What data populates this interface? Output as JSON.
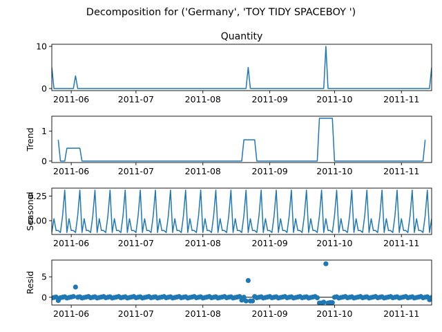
{
  "figure": {
    "suptitle": "Decomposition for ('Germany', 'TOY TIDY SPACEBOY  ')"
  },
  "colors": {
    "series": "#1f77b4",
    "axis": "#000000",
    "background": "#ffffff"
  },
  "chart_data": [
    {
      "type": "line",
      "title": "Quantity",
      "ylabel": "",
      "x_axis": {
        "kind": "date",
        "start": "2011-05-23",
        "end": "2011-11-15",
        "ticks": [
          "2011-06",
          "2011-07",
          "2011-08",
          "2011-09",
          "2011-10",
          "2011-11"
        ]
      },
      "ylim": [
        -0.5,
        10.5
      ],
      "yticks": [
        0,
        10
      ],
      "grid": false,
      "points": [
        {
          "x": "2011-05-23",
          "y": 5
        },
        {
          "x": "2011-05-24",
          "y": 0
        },
        {
          "x": "2011-06-02",
          "y": 0
        },
        {
          "x": "2011-06-03",
          "y": 3
        },
        {
          "x": "2011-06-04",
          "y": 0
        },
        {
          "x": "2011-08-21",
          "y": 0
        },
        {
          "x": "2011-08-22",
          "y": 5
        },
        {
          "x": "2011-08-23",
          "y": 0
        },
        {
          "x": "2011-09-26",
          "y": 0
        },
        {
          "x": "2011-09-27",
          "y": 10
        },
        {
          "x": "2011-09-28",
          "y": 0
        },
        {
          "x": "2011-11-14",
          "y": 0
        },
        {
          "x": "2011-11-15",
          "y": 5
        }
      ]
    },
    {
      "type": "line",
      "title": "",
      "ylabel": "Trend",
      "x_axis": {
        "kind": "date",
        "start": "2011-05-23",
        "end": "2011-11-15",
        "ticks": [
          "2011-06",
          "2011-07",
          "2011-08",
          "2011-09",
          "2011-10",
          "2011-11"
        ]
      },
      "ylim": [
        -0.05,
        1.5
      ],
      "yticks": [
        0,
        1
      ],
      "grid": false,
      "points": [
        {
          "x": "2011-05-26",
          "y": 0.71
        },
        {
          "x": "2011-05-27",
          "y": 0
        },
        {
          "x": "2011-05-29",
          "y": 0
        },
        {
          "x": "2011-05-30",
          "y": 0.43
        },
        {
          "x": "2011-06-05",
          "y": 0.43
        },
        {
          "x": "2011-06-06",
          "y": 0
        },
        {
          "x": "2011-08-19",
          "y": 0
        },
        {
          "x": "2011-08-20",
          "y": 0.71
        },
        {
          "x": "2011-08-25",
          "y": 0.71
        },
        {
          "x": "2011-08-26",
          "y": 0
        },
        {
          "x": "2011-09-23",
          "y": 0
        },
        {
          "x": "2011-09-24",
          "y": 1.43
        },
        {
          "x": "2011-09-30",
          "y": 1.43
        },
        {
          "x": "2011-10-01",
          "y": 0
        },
        {
          "x": "2011-11-11",
          "y": 0
        },
        {
          "x": "2011-11-12",
          "y": 0.71
        }
      ]
    },
    {
      "type": "line",
      "title": "",
      "ylabel": "Seasonal",
      "x_axis": {
        "kind": "date",
        "start": "2011-05-23",
        "end": "2011-11-15",
        "ticks": [
          "2011-06",
          "2011-07",
          "2011-08",
          "2011-09",
          "2011-10",
          "2011-11"
        ]
      },
      "ylim": [
        -0.14,
        0.33
      ],
      "yticks": [
        0.25,
        0.0
      ],
      "ytick_labels": [
        "0.25",
        "0.00"
      ],
      "grid": false,
      "period_days": 7,
      "first_day": "2011-05-23",
      "weekly_pattern": [
        -0.12,
        0.02,
        -0.1,
        -0.1,
        -0.12,
        0.05,
        0.31
      ]
    },
    {
      "type": "scatter",
      "title": "",
      "ylabel": "Resid",
      "x_axis": {
        "kind": "date",
        "start": "2011-05-23",
        "end": "2011-11-15",
        "ticks": [
          "2011-06",
          "2011-07",
          "2011-08",
          "2011-09",
          "2011-10",
          "2011-11"
        ]
      },
      "ylim": [
        -1.9,
        9.1
      ],
      "yticks": [
        0,
        5
      ],
      "grid": false,
      "zero_line": true,
      "residual_points": [
        {
          "x": "2011-05-26",
          "y": -0.8
        },
        {
          "x": "2011-06-03",
          "y": 2.5
        },
        {
          "x": "2011-08-22",
          "y": 4.1
        },
        {
          "x": "2011-08-19",
          "y": -0.7
        },
        {
          "x": "2011-08-21",
          "y": -0.9
        },
        {
          "x": "2011-08-23",
          "y": -0.9
        },
        {
          "x": "2011-08-24",
          "y": -0.9
        },
        {
          "x": "2011-09-24",
          "y": -1.4
        },
        {
          "x": "2011-09-25",
          "y": -1.4
        },
        {
          "x": "2011-09-26",
          "y": -1.2
        },
        {
          "x": "2011-09-27",
          "y": 8.2
        },
        {
          "x": "2011-09-28",
          "y": -1.4
        },
        {
          "x": "2011-09-29",
          "y": -1.3
        },
        {
          "x": "2011-09-30",
          "y": -1.3
        },
        {
          "x": "2011-11-14",
          "y": -0.6
        }
      ]
    }
  ]
}
